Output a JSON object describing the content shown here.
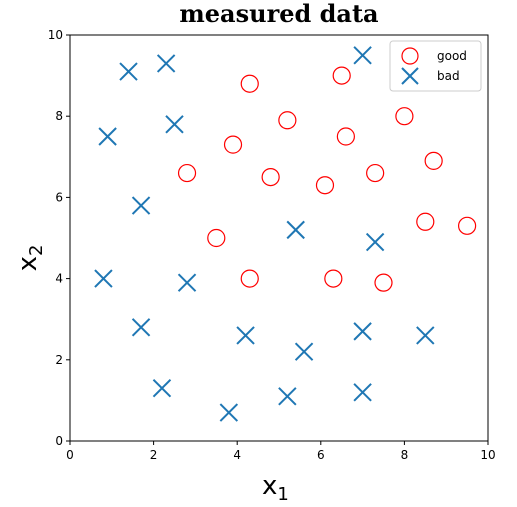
{
  "chart_data": {
    "type": "scatter",
    "title": "measured data",
    "xlabel": "x",
    "xlabel_sub": "1",
    "ylabel": "x",
    "ylabel_sub": "2",
    "xlim": [
      0,
      10
    ],
    "ylim": [
      0,
      10
    ],
    "xticks": [
      "0",
      "2",
      "4",
      "6",
      "8",
      "10"
    ],
    "yticks": [
      "0",
      "2",
      "4",
      "6",
      "8",
      "10"
    ],
    "grid": false,
    "legend_position": "top-right",
    "series": [
      {
        "name": "good",
        "marker": "circle",
        "color": "#ff0000",
        "points": [
          [
            4.3,
            8.8
          ],
          [
            6.5,
            9.0
          ],
          [
            5.2,
            7.9
          ],
          [
            3.9,
            7.3
          ],
          [
            6.6,
            7.5
          ],
          [
            8.0,
            8.0
          ],
          [
            2.8,
            6.6
          ],
          [
            4.8,
            6.5
          ],
          [
            6.1,
            6.3
          ],
          [
            7.3,
            6.6
          ],
          [
            8.7,
            6.9
          ],
          [
            3.5,
            5.0
          ],
          [
            8.5,
            5.4
          ],
          [
            9.5,
            5.3
          ],
          [
            4.3,
            4.0
          ],
          [
            6.3,
            4.0
          ],
          [
            7.5,
            3.9
          ]
        ]
      },
      {
        "name": "bad",
        "marker": "x",
        "color": "#1f77b4",
        "points": [
          [
            1.4,
            9.1
          ],
          [
            2.3,
            9.3
          ],
          [
            7.0,
            9.5
          ],
          [
            0.9,
            7.5
          ],
          [
            2.5,
            7.8
          ],
          [
            1.7,
            5.8
          ],
          [
            5.4,
            5.2
          ],
          [
            7.3,
            4.9
          ],
          [
            0.8,
            4.0
          ],
          [
            2.8,
            3.9
          ],
          [
            1.7,
            2.8
          ],
          [
            4.2,
            2.6
          ],
          [
            5.6,
            2.2
          ],
          [
            7.0,
            2.7
          ],
          [
            8.5,
            2.6
          ],
          [
            2.2,
            1.3
          ],
          [
            3.8,
            0.7
          ],
          [
            5.2,
            1.1
          ],
          [
            7.0,
            1.2
          ]
        ]
      }
    ]
  }
}
